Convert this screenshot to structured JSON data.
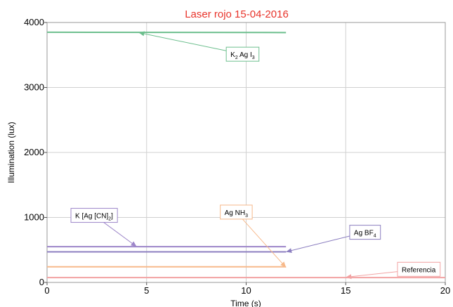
{
  "chart_data": {
    "type": "line",
    "title": "Laser rojo 15-04-2016",
    "title_color": "#e8332a",
    "xlabel": "Time (s)",
    "ylabel": "Illumination (lux)",
    "xlim": [
      0,
      20
    ],
    "ylim": [
      0,
      4000
    ],
    "xticks": [
      0,
      5,
      10,
      15,
      20
    ],
    "yticks": [
      0,
      1000,
      2000,
      3000,
      4000
    ],
    "grid": true,
    "series": [
      {
        "name": "K2 Ag I3",
        "color": "#6dbf8e",
        "x": [
          0,
          12
        ],
        "y": [
          3850,
          3845
        ]
      },
      {
        "name": "K [Ag [CN]2]",
        "color": "#9d86c9",
        "x": [
          0,
          12
        ],
        "y": [
          550,
          550
        ]
      },
      {
        "name": "Ag BF4",
        "color": "#8c7fc0",
        "x": [
          0,
          12
        ],
        "y": [
          470,
          470
        ]
      },
      {
        "name": "Ag NH3",
        "color": "#f7b98a",
        "x": [
          0,
          12
        ],
        "y": [
          240,
          240
        ]
      },
      {
        "name": "Referencia",
        "color": "#f2a3a3",
        "x": [
          0,
          20
        ],
        "y": [
          75,
          75
        ]
      }
    ],
    "annotations": [
      {
        "main": "K",
        "sub": "2",
        "rest": [
          {
            "t": " Ag I",
            "s": ""
          },
          {
            "t": "",
            "s": "3"
          }
        ],
        "color": "#6dbf8e",
        "box": [
          9.0,
          3620
        ],
        "target": [
          4.6,
          3845
        ]
      },
      {
        "main": "K [Ag [CN]",
        "sub": "2",
        "rest": [
          {
            "t": "]",
            "s": ""
          }
        ],
        "color": "#9d86c9",
        "box": [
          1.2,
          1140
        ],
        "target": [
          4.5,
          550
        ]
      },
      {
        "main": "Ag NH",
        "sub": "3",
        "rest": [],
        "color": "#f7b98a",
        "box": [
          8.7,
          1190
        ],
        "target": [
          12.0,
          230
        ]
      },
      {
        "main": "Ag BF",
        "sub": "4",
        "rest": [],
        "color": "#8c7fc0",
        "box": [
          15.2,
          880
        ],
        "target": [
          12.0,
          470
        ]
      },
      {
        "main": "Referencia",
        "sub": "",
        "rest": [],
        "color": "#f2a3a3",
        "box": [
          17.6,
          310
        ],
        "target": [
          15.0,
          80
        ]
      }
    ]
  }
}
